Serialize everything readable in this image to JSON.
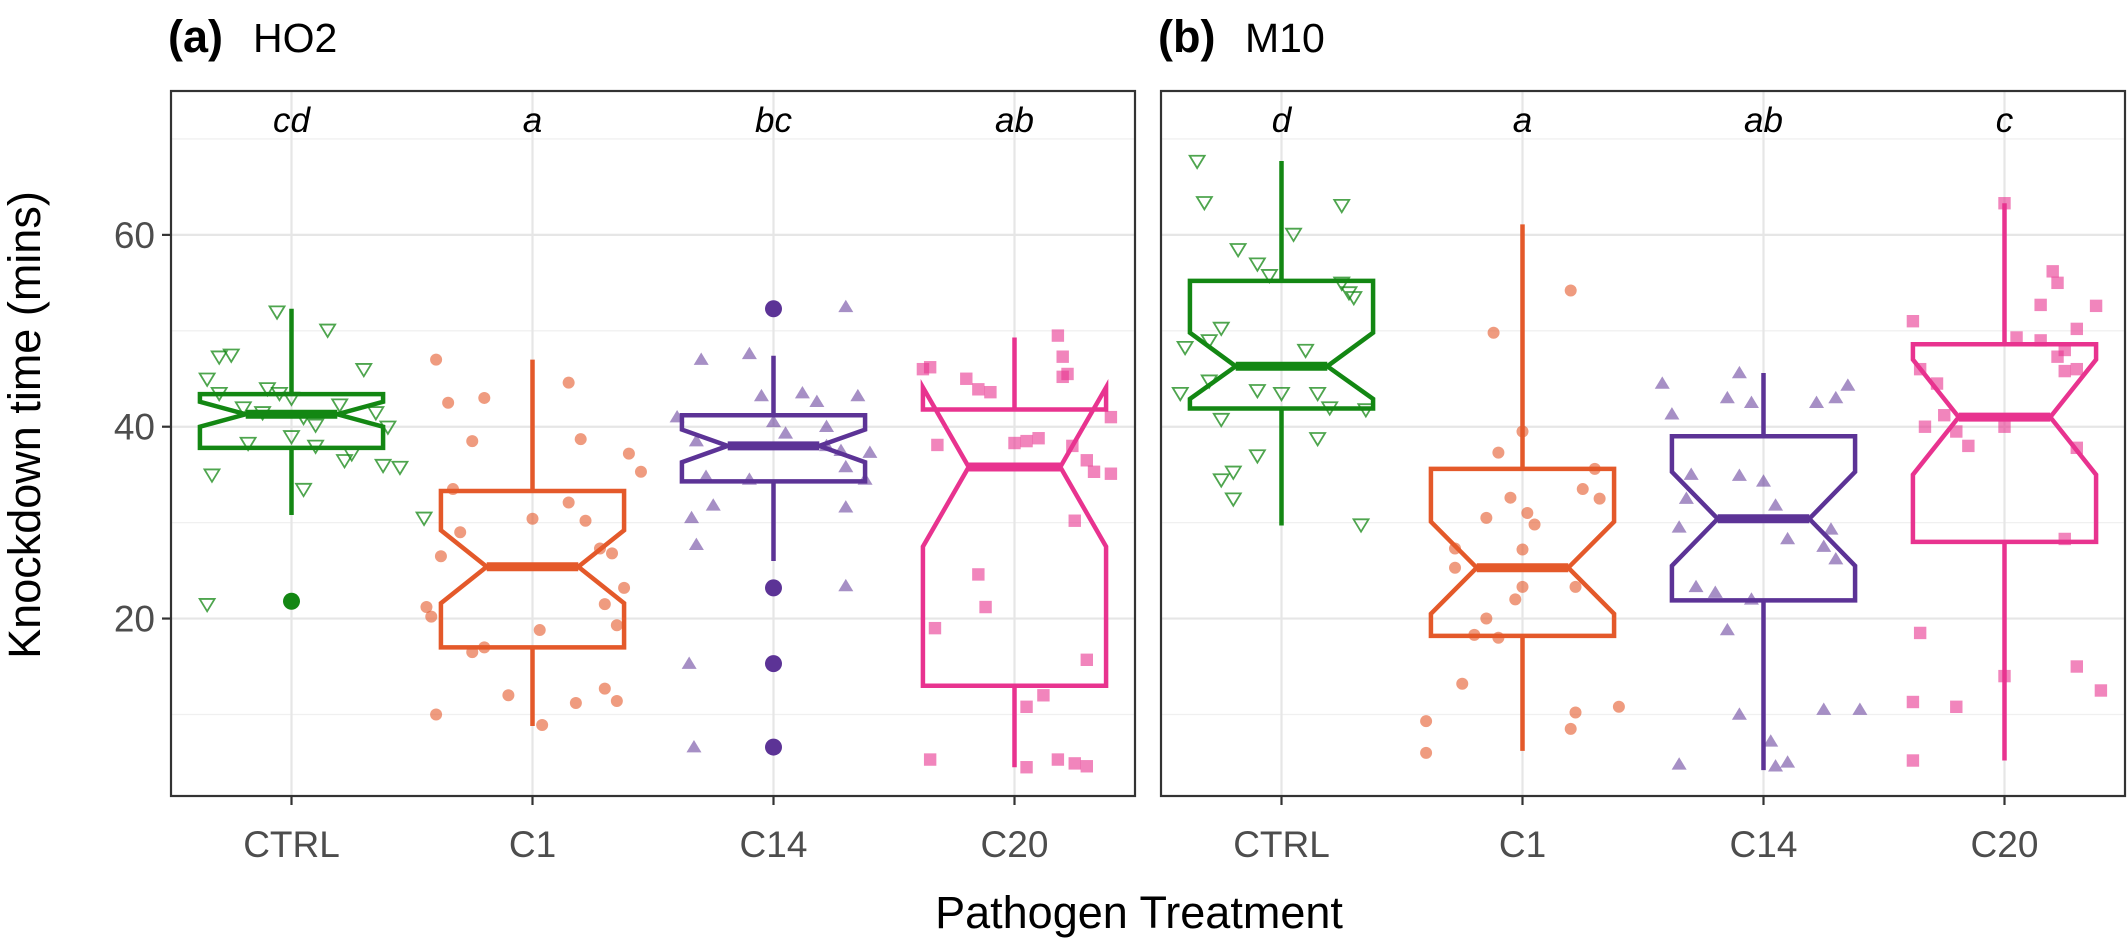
{
  "chart_data": {
    "type": "boxplot",
    "xlabel": "Pathogen Treatment",
    "ylabel": "Knockdown time (mins)",
    "ylim": [
      1.5,
      75
    ],
    "yticks": [
      20,
      40,
      60
    ],
    "grid": true,
    "categories": [
      "CTRL",
      "C1",
      "C14",
      "C20"
    ],
    "colors": {
      "CTRL": "#138713",
      "C1": "#e4592a",
      "C14": "#5c3396",
      "C20": "#e8338f"
    },
    "markers": {
      "CTRL": "open-triangle-down",
      "C1": "circle",
      "C14": "triangle-up",
      "C20": "square"
    },
    "panels": [
      {
        "tag": "(a)",
        "name": "HO2",
        "letters": [
          "cd",
          "a",
          "bc",
          "ab"
        ],
        "boxes": [
          {
            "category": "CTRL",
            "q1": 37.8,
            "median": 41.3,
            "q3": 43.4,
            "notch_low": 40.0,
            "notch_high": 42.6,
            "whisker_low": 30.8,
            "whisker_high": 52.3,
            "outliers": [
              21.8
            ]
          },
          {
            "category": "C1",
            "q1": 17.0,
            "median": 25.4,
            "q3": 33.3,
            "notch_low": 21.6,
            "notch_high": 29.2,
            "whisker_low": 8.8,
            "whisker_high": 47.0,
            "outliers": []
          },
          {
            "category": "C14",
            "q1": 34.3,
            "median": 38.0,
            "q3": 41.2,
            "notch_low": 36.3,
            "notch_high": 39.7,
            "whisker_low": 26.0,
            "whisker_high": 47.4,
            "outliers": [
              52.3,
              23.2,
              15.3,
              6.6
            ]
          },
          {
            "category": "C20",
            "q1": 13.0,
            "median": 35.8,
            "q3": 41.8,
            "notch_low": 27.5,
            "notch_high": 44.1,
            "whisker_low": 4.5,
            "whisker_high": 49.3,
            "outliers": []
          }
        ],
        "points": {
          "CTRL": [
            [
              -0.35,
              45
            ],
            [
              -0.3,
              47.3
            ],
            [
              -0.25,
              47.5
            ],
            [
              -0.2,
              42
            ],
            [
              -0.33,
              35
            ],
            [
              -0.18,
              38.3
            ],
            [
              -0.1,
              44
            ],
            [
              -0.05,
              43.5
            ],
            [
              0.0,
              43
            ],
            [
              0.05,
              41
            ],
            [
              0.1,
              40.2
            ],
            [
              -0.12,
              41.5
            ],
            [
              -0.3,
              43.5
            ],
            [
              0.15,
              50.1
            ],
            [
              0.2,
              42.3
            ],
            [
              -0.06,
              52
            ],
            [
              0.25,
              37.2
            ],
            [
              0.1,
              38
            ],
            [
              0.3,
              46
            ],
            [
              0.35,
              41.5
            ],
            [
              0.4,
              40
            ],
            [
              0.22,
              36.5
            ],
            [
              0.05,
              33.5
            ],
            [
              0.45,
              35.8
            ],
            [
              0.38,
              36
            ],
            [
              0.55,
              30.5
            ],
            [
              -0.35,
              21.5
            ],
            [
              0.0,
              39
            ]
          ],
          "C1": [
            [
              -0.4,
              47
            ],
            [
              -0.35,
              42.5
            ],
            [
              -0.25,
              38.5
            ],
            [
              -0.2,
              43
            ],
            [
              -0.33,
              33.5
            ],
            [
              -0.3,
              29
            ],
            [
              -0.38,
              26.5
            ],
            [
              -0.44,
              21.2
            ],
            [
              -0.42,
              20.2
            ],
            [
              -0.2,
              17
            ],
            [
              -0.25,
              16.5
            ],
            [
              -0.4,
              10
            ],
            [
              -0.1,
              12
            ],
            [
              0.03,
              18.8
            ],
            [
              0.0,
              30.4
            ],
            [
              0.15,
              32.1
            ],
            [
              0.22,
              30.2
            ],
            [
              0.28,
              27.3
            ],
            [
              0.33,
              26.8
            ],
            [
              0.38,
              23.2
            ],
            [
              0.45,
              35.3
            ],
            [
              0.4,
              37.2
            ],
            [
              0.2,
              38.7
            ],
            [
              0.3,
              21.5
            ],
            [
              0.35,
              19.3
            ],
            [
              0.3,
              12.7
            ],
            [
              0.35,
              11.4
            ],
            [
              0.18,
              11.2
            ],
            [
              0.04,
              8.9
            ],
            [
              0.15,
              44.6
            ]
          ],
          "C14": [
            [
              -0.3,
              47
            ],
            [
              -0.4,
              41
            ],
            [
              -0.32,
              38.5
            ],
            [
              -0.28,
              34.8
            ],
            [
              -0.25,
              31.8
            ],
            [
              -0.34,
              30.5
            ],
            [
              -0.32,
              27.7
            ],
            [
              -0.35,
              15.3
            ],
            [
              -0.33,
              6.6
            ],
            [
              -0.1,
              47.6
            ],
            [
              -0.05,
              43.2
            ],
            [
              0.0,
              40.5
            ],
            [
              0.05,
              39.3
            ],
            [
              0.12,
              43.5
            ],
            [
              0.18,
              42.6
            ],
            [
              0.22,
              38
            ],
            [
              0.28,
              37.5
            ],
            [
              0.3,
              35.8
            ],
            [
              0.35,
              43.2
            ],
            [
              0.38,
              34.5
            ],
            [
              0.4,
              37.3
            ],
            [
              0.3,
              31.6
            ],
            [
              0.3,
              23.4
            ],
            [
              0.3,
              52.5
            ],
            [
              -0.1,
              34.5
            ],
            [
              0.22,
              40
            ]
          ],
          "C20": [
            [
              -0.35,
              46.2
            ],
            [
              -0.38,
              46
            ],
            [
              -0.32,
              38.1
            ],
            [
              -0.33,
              19
            ],
            [
              -0.35,
              5.3
            ],
            [
              -0.2,
              45
            ],
            [
              -0.15,
              43.9
            ],
            [
              -0.1,
              43.6
            ],
            [
              0.0,
              38.3
            ],
            [
              0.05,
              38.5
            ],
            [
              0.1,
              38.8
            ],
            [
              0.2,
              45.2
            ],
            [
              0.24,
              38
            ],
            [
              0.3,
              36.5
            ],
            [
              0.2,
              47.3
            ],
            [
              0.22,
              45.5
            ],
            [
              0.18,
              49.5
            ],
            [
              0.25,
              30.2
            ],
            [
              0.33,
              35.3
            ],
            [
              -0.15,
              24.6
            ],
            [
              -0.12,
              21.2
            ],
            [
              0.4,
              35.1
            ],
            [
              0.4,
              41
            ],
            [
              0.3,
              15.7
            ],
            [
              0.05,
              10.8
            ],
            [
              0.12,
              12
            ],
            [
              0.05,
              4.5
            ],
            [
              0.18,
              5.3
            ],
            [
              0.25,
              4.9
            ],
            [
              0.3,
              4.6
            ]
          ]
        }
      },
      {
        "tag": "(b)",
        "name": "M10",
        "letters": [
          "d",
          "a",
          "ab",
          "c"
        ],
        "boxes": [
          {
            "category": "CTRL",
            "q1": 41.9,
            "median": 46.3,
            "q3": 55.2,
            "notch_low": 42.9,
            "notch_high": 49.8,
            "whisker_low": 29.7,
            "whisker_high": 67.7,
            "outliers": []
          },
          {
            "category": "C1",
            "q1": 18.2,
            "median": 25.3,
            "q3": 35.6,
            "notch_low": 20.5,
            "notch_high": 30.1,
            "whisker_low": 6.2,
            "whisker_high": 61.1,
            "outliers": []
          },
          {
            "category": "C14",
            "q1": 21.9,
            "median": 30.4,
            "q3": 39.0,
            "notch_low": 25.5,
            "notch_high": 35.3,
            "whisker_low": 4.2,
            "whisker_high": 45.6,
            "outliers": []
          },
          {
            "category": "C20",
            "q1": 28.0,
            "median": 41.0,
            "q3": 48.6,
            "notch_low": 35.0,
            "notch_high": 47.0,
            "whisker_low": 5.2,
            "whisker_high": 63.3,
            "outliers": []
          }
        ],
        "points": {
          "CTRL": [
            [
              -0.35,
              67.7
            ],
            [
              -0.32,
              63.4
            ],
            [
              -0.25,
              50.3
            ],
            [
              -0.3,
              49
            ],
            [
              -0.4,
              48.3
            ],
            [
              -0.3,
              44.8
            ],
            [
              -0.42,
              43.5
            ],
            [
              -0.18,
              58.5
            ],
            [
              -0.1,
              57
            ],
            [
              -0.05,
              55.8
            ],
            [
              0.05,
              60.1
            ],
            [
              0.25,
              55
            ],
            [
              0.28,
              54
            ],
            [
              0.3,
              53.5
            ],
            [
              0.25,
              63.1
            ],
            [
              0.1,
              48
            ],
            [
              0.0,
              43.5
            ],
            [
              -0.1,
              43.8
            ],
            [
              0.15,
              43.5
            ],
            [
              0.2,
              42
            ],
            [
              0.35,
              41.8
            ],
            [
              -0.25,
              40.8
            ],
            [
              -0.1,
              37
            ],
            [
              0.15,
              38.8
            ],
            [
              -0.2,
              35.3
            ],
            [
              -0.25,
              34.5
            ],
            [
              -0.2,
              32.5
            ],
            [
              0.33,
              29.8
            ]
          ],
          "C1": [
            [
              -0.4,
              9.3
            ],
            [
              -0.4,
              6
            ],
            [
              -0.25,
              13.2
            ],
            [
              -0.15,
              20
            ],
            [
              -0.1,
              18
            ],
            [
              -0.2,
              18.3
            ],
            [
              -0.28,
              27.3
            ],
            [
              -0.28,
              25.3
            ],
            [
              -0.12,
              49.8
            ],
            [
              -0.1,
              37.3
            ],
            [
              -0.05,
              32.6
            ],
            [
              0.0,
              39.5
            ],
            [
              0.02,
              31
            ],
            [
              0.05,
              29.8
            ],
            [
              -0.03,
              22
            ],
            [
              0.0,
              23.3
            ],
            [
              0.2,
              54.2
            ],
            [
              0.3,
              35.6
            ],
            [
              0.25,
              33.5
            ],
            [
              0.32,
              32.5
            ],
            [
              0.22,
              23.3
            ],
            [
              0.2,
              8.5
            ],
            [
              0.22,
              10.2
            ],
            [
              0.4,
              10.8
            ],
            [
              0.0,
              27.2
            ],
            [
              -0.15,
              30.5
            ]
          ],
          "C14": [
            [
              -0.42,
              44.5
            ],
            [
              -0.38,
              41.3
            ],
            [
              -0.32,
              32.5
            ],
            [
              -0.35,
              29.5
            ],
            [
              -0.3,
              35
            ],
            [
              -0.28,
              23.3
            ],
            [
              -0.2,
              22.7
            ],
            [
              -0.15,
              43
            ],
            [
              -0.1,
              45.6
            ],
            [
              -0.05,
              42.5
            ],
            [
              -0.1,
              34.9
            ],
            [
              0.0,
              34.3
            ],
            [
              0.05,
              31.8
            ],
            [
              0.1,
              28.3
            ],
            [
              0.22,
              42.5
            ],
            [
              0.3,
              43
            ],
            [
              0.35,
              44.3
            ],
            [
              0.28,
              29.3
            ],
            [
              0.25,
              27.5
            ],
            [
              0.3,
              26.2
            ],
            [
              -0.15,
              18.8
            ],
            [
              -0.1,
              10
            ],
            [
              -0.35,
              4.8
            ],
            [
              0.1,
              5
            ],
            [
              0.03,
              7.2
            ],
            [
              0.05,
              4.6
            ],
            [
              0.25,
              10.5
            ],
            [
              0.4,
              10.5
            ],
            [
              -0.05,
              22
            ]
          ],
          "C20": [
            [
              -0.38,
              51
            ],
            [
              -0.35,
              46
            ],
            [
              -0.28,
              44.5
            ],
            [
              -0.25,
              41.2
            ],
            [
              -0.33,
              40
            ],
            [
              -0.2,
              39.5
            ],
            [
              -0.15,
              38
            ],
            [
              0.0,
              40
            ],
            [
              0.05,
              49.3
            ],
            [
              0.15,
              49
            ],
            [
              0.22,
              47.3
            ],
            [
              0.25,
              45.8
            ],
            [
              0.3,
              46
            ],
            [
              0.3,
              50.2
            ],
            [
              0.2,
              56.2
            ],
            [
              0.22,
              55
            ],
            [
              0.15,
              52.7
            ],
            [
              0.25,
              48
            ],
            [
              0.38,
              52.6
            ],
            [
              0.3,
              37.8
            ],
            [
              0.25,
              28.3
            ],
            [
              -0.35,
              18.5
            ],
            [
              -0.38,
              11.3
            ],
            [
              -0.2,
              10.8
            ],
            [
              -0.38,
              5.2
            ],
            [
              0.0,
              63.3
            ],
            [
              0.3,
              15
            ],
            [
              0.4,
              12.5
            ],
            [
              0.0,
              14
            ]
          ]
        }
      }
    ]
  }
}
